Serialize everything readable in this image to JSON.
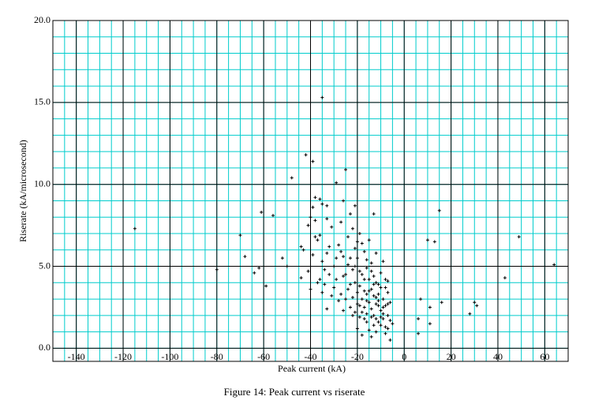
{
  "chart_data": {
    "type": "scatter",
    "caption": "Figure 14: Peak current vs riserate",
    "x_label": "Peak current (kA)",
    "y_label": "Riserate (kA/microsecond)",
    "xlim": [
      -150,
      70
    ],
    "ylim": [
      -0.8,
      20
    ],
    "xticks": [
      -140,
      -120,
      -100,
      -80,
      -60,
      -40,
      -20,
      0,
      20,
      40,
      60
    ],
    "yticks": [
      {
        "value": 0,
        "label": "0.0"
      },
      {
        "value": 5,
        "label": "5.0"
      },
      {
        "value": 10,
        "label": "10.0"
      },
      {
        "value": 15,
        "label": "15.0"
      },
      {
        "value": 20,
        "label": "20.0"
      }
    ],
    "grid": true,
    "grid_color": "#00cccc",
    "minor_grid_step_x": 5,
    "minor_grid_step_y": 1,
    "color": "#000000",
    "x": [
      -115,
      -80,
      -70,
      -68,
      -64,
      -62,
      -61,
      -59,
      -56,
      -52,
      -50,
      -48,
      -44,
      -43,
      -42,
      -39,
      -35,
      -33,
      -29,
      -25,
      -38,
      -26,
      -21,
      -13,
      6,
      6,
      7,
      10,
      11,
      11,
      13,
      15,
      16,
      28,
      30,
      31,
      43,
      49,
      64,
      -38,
      -37,
      -36,
      -35,
      -34,
      -33,
      -32,
      -31,
      -30,
      -29,
      -28,
      -27,
      -26,
      -25,
      -24,
      -23,
      -22,
      -21,
      -20,
      -19,
      -18,
      -17,
      -16,
      -15,
      -14,
      -13,
      -12,
      -11,
      -10,
      -9,
      -8,
      -7,
      -6,
      -5,
      -6,
      -7,
      -8,
      -9,
      -10,
      -11,
      -12,
      -13,
      -14,
      -15,
      -16,
      -17,
      -18,
      -19,
      -20,
      -21,
      -22,
      -23,
      -24,
      -25,
      -26,
      -27,
      -28,
      -30,
      -32,
      -34,
      -36,
      -40,
      -41,
      -39,
      -37,
      -20,
      -18,
      -16,
      -14,
      -12,
      -10,
      -9,
      -8,
      -7,
      -11,
      -12,
      -13,
      -14,
      -15,
      -16,
      -17,
      -18,
      -19,
      -20,
      -21,
      -22,
      -23,
      -24,
      -15,
      -14,
      -13,
      -12,
      -11,
      -10,
      -9,
      -8,
      -7,
      -6,
      -17,
      -19,
      -21,
      -22,
      -26,
      -29,
      -31,
      -33,
      -35,
      -12,
      -13,
      -14,
      -15,
      -16,
      -11,
      -10,
      -9,
      -8,
      -7,
      -20,
      -19,
      -18,
      -17,
      -16,
      -33,
      -35,
      -39,
      -40,
      -41,
      -44,
      -38,
      -36,
      -23,
      -27
    ],
    "values": [
      7.3,
      4.8,
      6.9,
      5.6,
      4.6,
      4.9,
      8.3,
      3.8,
      8.1,
      5.5,
      5.0,
      10.4,
      4.3,
      6.0,
      11.8,
      11.4,
      15.3,
      8.7,
      10.1,
      10.9,
      9.2,
      9.0,
      8.7,
      8.2,
      1.8,
      0.9,
      3.0,
      6.6,
      2.5,
      1.5,
      6.5,
      8.4,
      2.8,
      2.1,
      2.8,
      2.6,
      4.3,
      6.8,
      5.1,
      6.8,
      6.6,
      6.9,
      5.3,
      4.8,
      5.8,
      6.2,
      7.4,
      5.0,
      4.2,
      6.3,
      7.7,
      5.6,
      4.5,
      6.8,
      8.2,
      7.3,
      6.1,
      5.5,
      7.0,
      6.4,
      5.9,
      4.9,
      6.6,
      5.2,
      4.4,
      5.8,
      3.9,
      4.6,
      5.3,
      3.7,
      4.1,
      2.8,
      1.5,
      0.5,
      1.2,
      0.9,
      2.1,
      1.4,
      2.6,
      1.8,
      3.2,
      2.4,
      1.1,
      2.9,
      3.5,
      2.2,
      3.8,
      2.7,
      4.0,
      3.1,
      2.5,
      3.6,
      3.0,
      4.4,
      3.3,
      2.9,
      3.7,
      4.5,
      3.9,
      4.2,
      3.6,
      4.7,
      5.7,
      4.0,
      1.2,
      0.8,
      1.6,
      0.7,
      1.0,
      2.3,
      3.0,
      2.6,
      3.4,
      3.3,
      4.0,
      2.0,
      3.6,
      4.2,
      3.3,
      2.5,
      4.5,
      2.6,
      3.4,
      2.2,
      4.8,
      3.9,
      5.1,
      2.8,
      1.9,
      1.4,
      2.7,
      1.6,
      3.7,
      1.8,
      1.3,
      2.0,
      1.7,
      1.8,
      1.9,
      5.0,
      2.0,
      2.3,
      5.5,
      3.2,
      2.4,
      3.4,
      3.1,
      3.9,
      4.7,
      3.5,
      2.1,
      2.9,
      1.9,
      2.5,
      4.2,
      2.7,
      6.5,
      4.7,
      3.0,
      4.2,
      5.4,
      7.9,
      8.8,
      8.6,
      8.0,
      7.5,
      6.2,
      7.8,
      9.1,
      5.5,
      5.9
    ]
  }
}
